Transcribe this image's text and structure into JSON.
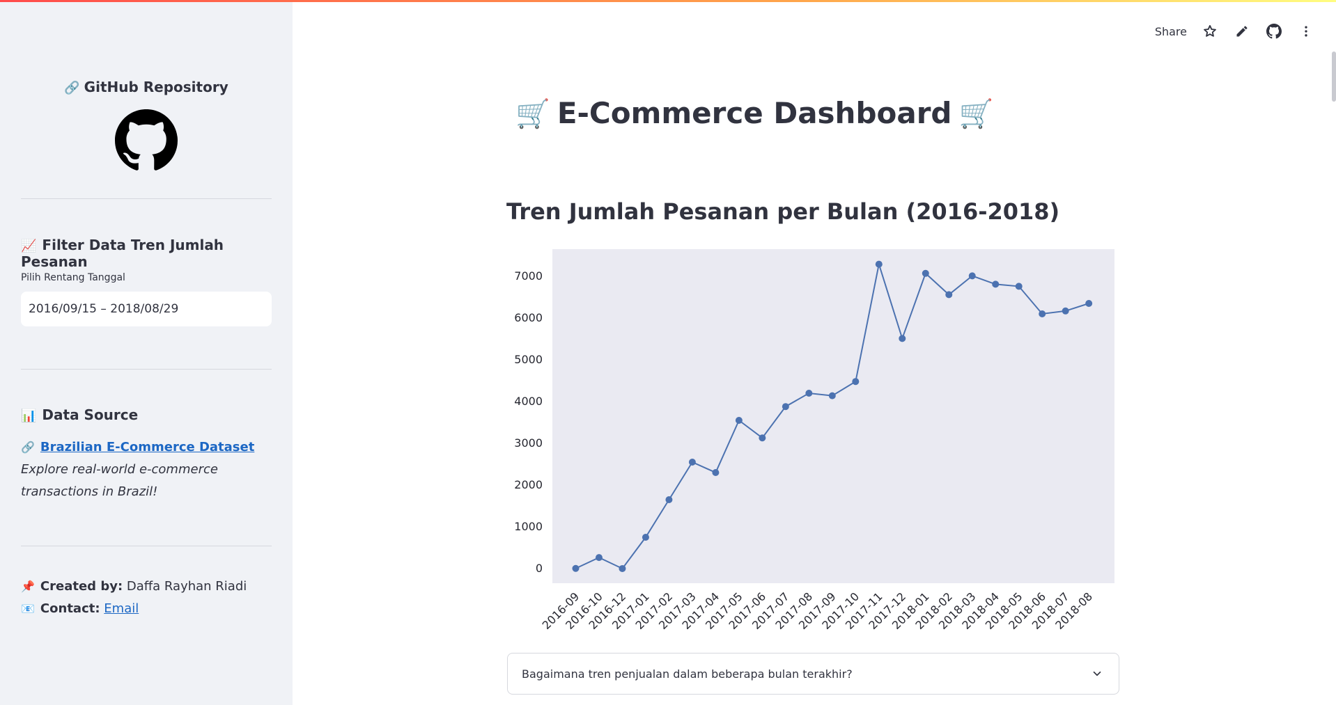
{
  "sidebar": {
    "github_heading": "GitHub Repository",
    "github_heading_icon": "link-icon",
    "github_logo_icon": "github-logo-icon",
    "filter_heading": "Filter Data Tren Jumlah Pesanan",
    "filter_heading_icon": "chart-increasing-icon",
    "date_label": "Pilih Rentang Tanggal",
    "date_value": "2016/09/15 – 2018/08/29",
    "source_heading": "Data Source",
    "source_heading_icon": "bar-chart-icon",
    "dataset_link": "Brazilian E-Commerce Dataset",
    "dataset_desc": "Explore real-world e-commerce transactions in Brazil!",
    "created_label": "Created by:",
    "created_value": "Daffa Rayhan Riadi",
    "contact_label": "Contact:",
    "contact_link": "Email"
  },
  "toolbar": {
    "share_label": "Share",
    "icons": [
      "star-icon",
      "pencil-icon",
      "github-icon",
      "more-vertical-icon"
    ]
  },
  "main": {
    "title": "E-Commerce Dashboard",
    "title_icon": "shopping-cart-icon",
    "chart_heading": "Tren Jumlah Pesanan per Bulan (2016-2018)",
    "expander_label": "Bagaimana tren penjualan dalam beberapa bulan terakhir?"
  },
  "colors": {
    "accent_line": "#4c72b0",
    "plot_bg": "#eaeaf2",
    "sidebar_bg": "#f0f2f6",
    "link": "#1c67c4"
  },
  "chart_data": {
    "type": "line",
    "x": [
      "2016-09",
      "2016-10",
      "2016-12",
      "2017-01",
      "2017-02",
      "2017-03",
      "2017-04",
      "2017-05",
      "2017-06",
      "2017-07",
      "2017-08",
      "2017-09",
      "2017-10",
      "2017-11",
      "2017-12",
      "2018-01",
      "2018-02",
      "2018-03",
      "2018-04",
      "2018-05",
      "2018-06",
      "2018-07",
      "2018-08"
    ],
    "values": [
      4,
      265,
      1,
      750,
      1650,
      2550,
      2300,
      3550,
      3130,
      3880,
      4200,
      4140,
      4480,
      7290,
      5510,
      7070,
      6560,
      7010,
      6810,
      6760,
      6100,
      6170,
      6350
    ],
    "yticks": [
      0,
      1000,
      2000,
      3000,
      4000,
      5000,
      6000,
      7000
    ],
    "ylim": [
      -350,
      7650
    ],
    "grid": false,
    "title": "",
    "xlabel": "",
    "ylabel": ""
  }
}
